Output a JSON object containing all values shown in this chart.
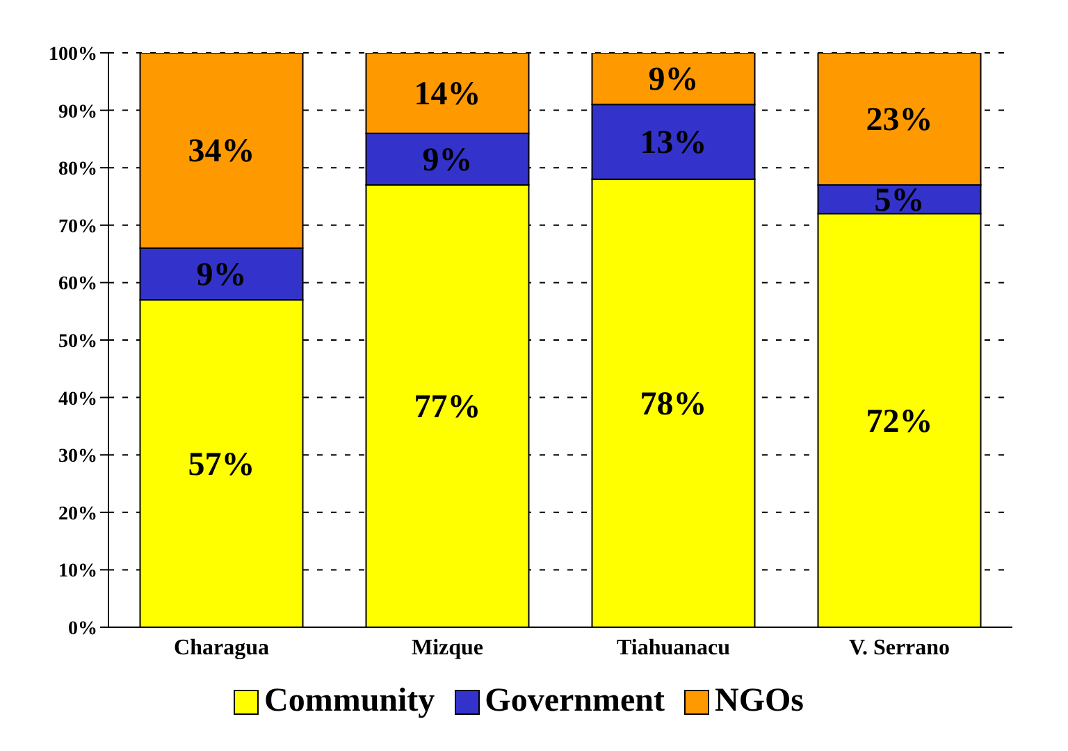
{
  "chart_data": {
    "type": "bar",
    "stacked": true,
    "categories": [
      "Charagua",
      "Mizque",
      "Tiahuanacu",
      "V. Serrano"
    ],
    "series": [
      {
        "name": "Community",
        "color": "#ffff00",
        "values": [
          57,
          77,
          78,
          72
        ],
        "value_labels": [
          "57%",
          "77%",
          "78%",
          "72%"
        ]
      },
      {
        "name": "Government",
        "color": "#3333cc",
        "values": [
          9,
          9,
          13,
          5
        ],
        "value_labels": [
          "9%",
          "9%",
          "13%",
          "5%"
        ]
      },
      {
        "name": "NGOs",
        "color": "#ff9900",
        "values": [
          34,
          14,
          9,
          23
        ],
        "value_labels": [
          "34%",
          "14%",
          "9%",
          "23%"
        ]
      }
    ],
    "ylim": [
      0,
      100
    ],
    "yticks": [
      {
        "value": 0,
        "label": "0%"
      },
      {
        "value": 10,
        "label": "10%"
      },
      {
        "value": 20,
        "label": "20%"
      },
      {
        "value": 30,
        "label": "30%"
      },
      {
        "value": 40,
        "label": "40%"
      },
      {
        "value": 50,
        "label": "50%"
      },
      {
        "value": 60,
        "label": "60%"
      },
      {
        "value": 70,
        "label": "70%"
      },
      {
        "value": 80,
        "label": "80%"
      },
      {
        "value": 90,
        "label": "90%"
      },
      {
        "value": 100,
        "label": "100%"
      }
    ],
    "grid": "y",
    "legend": "bottom"
  }
}
